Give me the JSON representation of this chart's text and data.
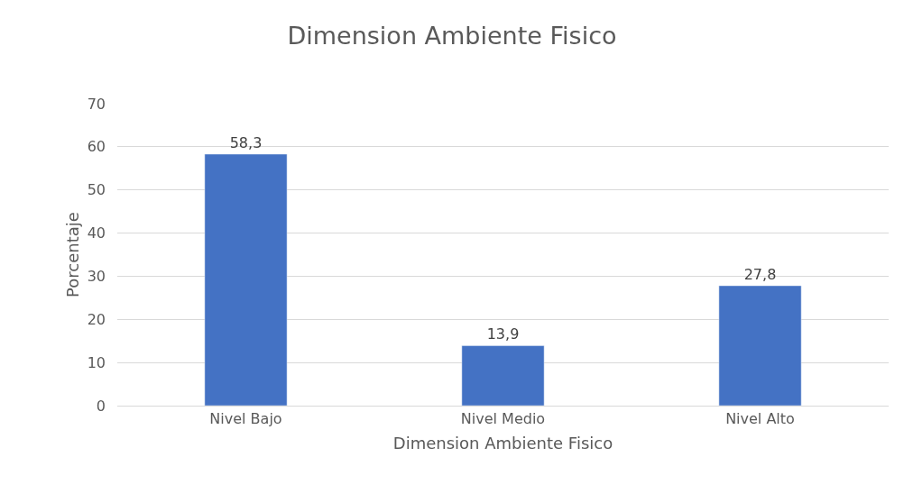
{
  "chart_data": {
    "type": "bar",
    "title": "Dimension Ambiente Fisico",
    "xlabel": "Dimension Ambiente Fisico",
    "ylabel": "Porcentaje",
    "categories": [
      "Nivel Bajo",
      "Nivel Medio",
      "Nivel Alto"
    ],
    "values": [
      58.3,
      13.9,
      27.8
    ],
    "value_labels": [
      "58,3",
      "13,9",
      "27,8"
    ],
    "color": "#4472c4",
    "ylim": [
      0,
      70
    ],
    "yticks": [
      0,
      10,
      20,
      30,
      40,
      50,
      60,
      70
    ],
    "grid": "y",
    "legend": false
  }
}
